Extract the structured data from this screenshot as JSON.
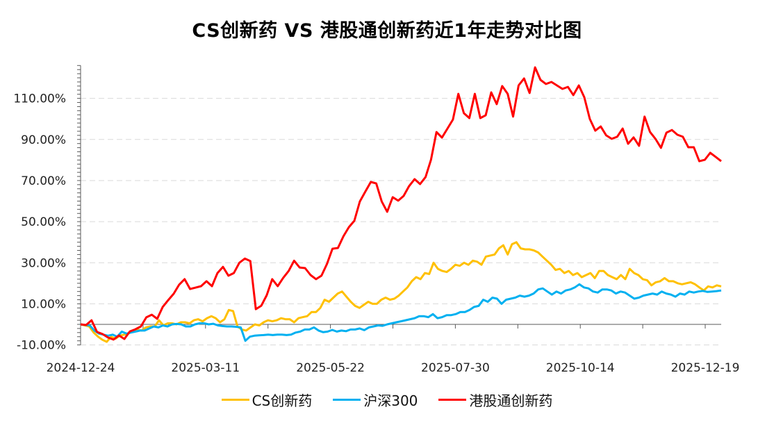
{
  "chart_data": {
    "type": "line",
    "title": "CS创新药 VS 港股通创新药近1年走势对比图",
    "xlabel": "",
    "ylabel": "",
    "ylim": [
      -10,
      126
    ],
    "yticks": [
      -10,
      10,
      30,
      50,
      70,
      90,
      110
    ],
    "ytick_labels": [
      "-10.00%",
      "10.00%",
      "30.00%",
      "50.00%",
      "70.00%",
      "90.00%",
      "110.00%"
    ],
    "ytick_minor_step": 2,
    "x_start_label": "2024-12-24",
    "x_end_label": "2025-12-19",
    "xtick_labels": [
      "2024-12-24",
      "2025-03-11",
      "2025-05-22",
      "2025-07-30",
      "2025-10-14",
      "2025-12-19"
    ],
    "xtick_label_positions": [
      0.0,
      0.2,
      0.4,
      0.6,
      0.8,
      1.0
    ],
    "x_major_ticks": 10,
    "grid": "horizontal-dashed",
    "legend_position": "bottom",
    "series": [
      {
        "name": "CS创新药",
        "color": "#FFC000",
        "values": [
          0,
          -0.5,
          -1,
          -4,
          -6,
          -7.5,
          -8.5,
          -6,
          -7,
          -5.5,
          -5,
          -4.5,
          -3,
          -2.5,
          -3,
          -1.5,
          -1,
          -1,
          2,
          -0.5,
          0.5,
          0.5,
          0,
          1,
          1,
          0.5,
          2,
          2.5,
          1.5,
          3,
          4,
          3,
          1,
          2.5,
          7,
          6.5,
          -1,
          -2.5,
          -3,
          -1.5,
          0,
          -0.5,
          1,
          2,
          1.5,
          2,
          3,
          2.5,
          2.5,
          1,
          3,
          3.5,
          4,
          6,
          6,
          8,
          12,
          11,
          13,
          15,
          16,
          13.5,
          11,
          9,
          8,
          9.5,
          11,
          10,
          10,
          12,
          13,
          12,
          12.5,
          14,
          16,
          18,
          21,
          23,
          22,
          25,
          24.5,
          30,
          27,
          26,
          25.5,
          27,
          29,
          28.5,
          30,
          29,
          31,
          30.5,
          29,
          33,
          33.5,
          34,
          37,
          38.5,
          34,
          39,
          40,
          37,
          36.5,
          36.5,
          36,
          35,
          33,
          31,
          29,
          26.5,
          27,
          25,
          26,
          24,
          25,
          23,
          24,
          25,
          22.5,
          26,
          26,
          24,
          23,
          22,
          24,
          22,
          27,
          25,
          24,
          22,
          21.5,
          19,
          20.5,
          21,
          22.5,
          21,
          21,
          20,
          19.5,
          20,
          20.5,
          19.5,
          18,
          16.5,
          18.5,
          18,
          19,
          18.5
        ],
        "note": "approximate cumulative return %, read from chart"
      },
      {
        "name": "沪深300",
        "color": "#00B0F0",
        "values": [
          0,
          -0.3,
          -0.5,
          -3,
          -4.5,
          -5,
          -5.5,
          -5,
          -6,
          -3.5,
          -4.5,
          -4,
          -3.5,
          -3,
          -3,
          -2,
          -1,
          -1.5,
          -0.5,
          -1,
          0,
          0.2,
          0,
          -1,
          -1,
          0,
          0.5,
          0.5,
          0,
          0.3,
          -0.5,
          -0.8,
          -1,
          -1,
          -1.2,
          -1.5,
          -8,
          -6,
          -5.5,
          -5.3,
          -5.2,
          -5,
          -5.2,
          -5,
          -5,
          -5.2,
          -5,
          -4,
          -3.5,
          -2.5,
          -2.5,
          -1.5,
          -3,
          -3.8,
          -3.5,
          -2.7,
          -3.5,
          -3,
          -3.3,
          -2.5,
          -2.5,
          -2,
          -2.8,
          -1.5,
          -1,
          -0.5,
          -0.7,
          0,
          0.5,
          1,
          1.5,
          2,
          2.5,
          3,
          4,
          4,
          3.5,
          5,
          3,
          3.5,
          4.5,
          4.5,
          5,
          6,
          6,
          7,
          8.5,
          9,
          12,
          11,
          13,
          12.5,
          10,
          12,
          12.5,
          13,
          14,
          13.5,
          14,
          15,
          17,
          17.5,
          16,
          14.5,
          16,
          15,
          16.5,
          17,
          18,
          19.5,
          18,
          17.5,
          16,
          15.5,
          17,
          17,
          16.5,
          15,
          16,
          15.5,
          14,
          12.5,
          13,
          14,
          14.5,
          15,
          14.5,
          16,
          15,
          14.5,
          13.5,
          15,
          14.5,
          16,
          15.5,
          16,
          16.3,
          15.8,
          16,
          16.2,
          16.5
        ],
        "note": "approximate cumulative return %, read from chart"
      },
      {
        "name": "港股通创新药",
        "color": "#FF0000",
        "values": [
          0,
          -0.3,
          2,
          -3.7,
          -4.7,
          -6.4,
          -7.4,
          -5.4,
          -7.1,
          -3.4,
          -2.4,
          -1,
          3.4,
          4.7,
          2.7,
          8.5,
          11.8,
          14.9,
          19.3,
          22,
          17.2,
          17.9,
          18.6,
          21,
          18.6,
          25,
          28,
          23.7,
          25,
          30,
          32,
          30.8,
          7.4,
          9.1,
          14.2,
          22,
          18.6,
          22.6,
          26,
          31,
          27.7,
          27.4,
          24,
          22,
          23.7,
          29.4,
          36.8,
          37.2,
          42.9,
          47.3,
          50.4,
          59.8,
          64.6,
          69.3,
          68.6,
          59.8,
          54.8,
          61.9,
          60.2,
          62.5,
          67.3,
          70.7,
          68.3,
          71.7,
          80.1,
          93.6,
          90.9,
          95.3,
          99.7,
          112.2,
          102.8,
          100.4,
          112.2,
          100.4,
          101.8,
          112.9,
          107.2,
          116,
          112.2,
          101.1,
          116.3,
          119.7,
          112.6,
          125.1,
          119,
          117,
          118,
          116.3,
          114.6,
          115.6,
          111.6,
          116.3,
          110.5,
          100,
          94.3,
          96.3,
          92,
          90.3,
          91.3,
          95.3,
          87.9,
          91,
          86.9,
          101.1,
          93.6,
          90.3,
          85.9,
          93.3,
          94.6,
          92.3,
          91.3,
          86.2,
          86.2,
          79.4,
          80.1,
          83.5,
          81.5,
          79.4
        ],
        "note": "approximate cumulative return %, read from chart"
      }
    ]
  }
}
